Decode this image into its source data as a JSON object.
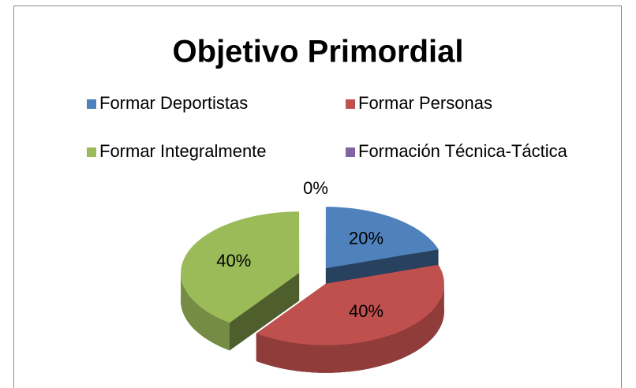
{
  "chart_data": {
    "type": "pie3d",
    "title": "Objetivo Primordial",
    "categories": [
      "Formar Deportistas",
      "Formar Personas",
      "Formar Integralmente",
      "Formación Técnica-Táctica"
    ],
    "values": [
      20,
      40,
      40,
      0
    ],
    "value_labels": [
      "20%",
      "40%",
      "40%",
      "0%"
    ],
    "colors": [
      "#4f81bd",
      "#c0504d",
      "#9bbb59",
      "#8064a2"
    ],
    "legend": "top"
  }
}
